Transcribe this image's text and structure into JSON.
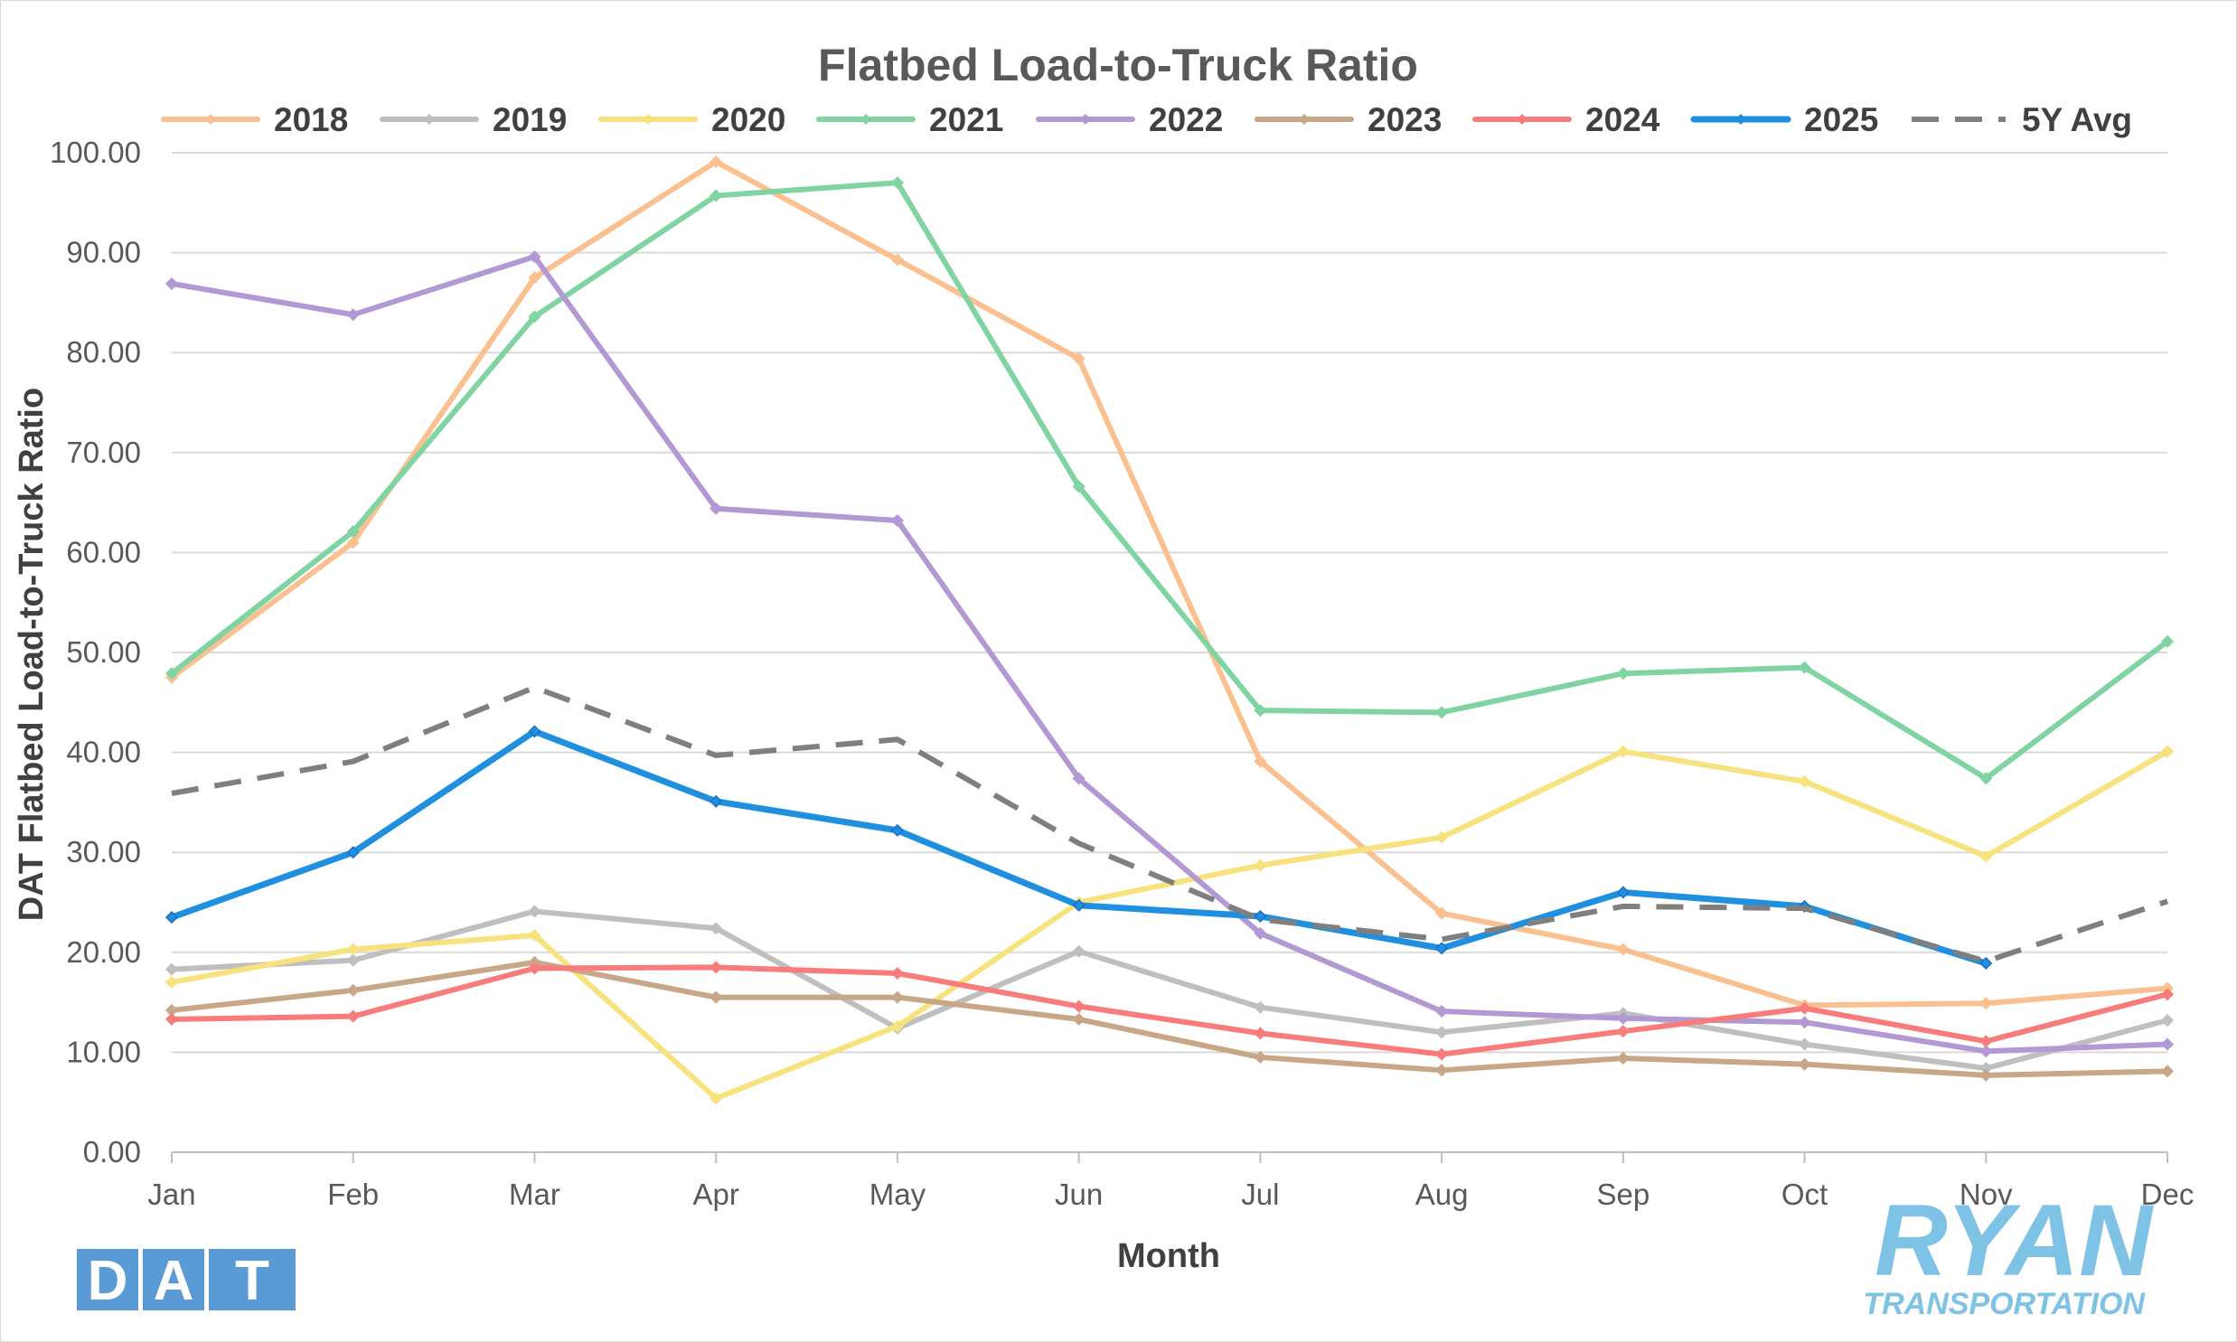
{
  "chart_data": {
    "type": "line",
    "title": "Flatbed Load-to-Truck Ratio",
    "xlabel": "Month",
    "ylabel": "DAT Flatbed Load-to-Truck Ratio",
    "ylim": [
      0,
      100
    ],
    "y_ticks": [
      "0.00",
      "10.00",
      "20.00",
      "30.00",
      "40.00",
      "50.00",
      "60.00",
      "70.00",
      "80.00",
      "90.00",
      "100.00"
    ],
    "grid": "horizontal",
    "legend_position": "top",
    "categories": [
      "Jan",
      "Feb",
      "Mar",
      "Apr",
      "May",
      "Jun",
      "Jul",
      "Aug",
      "Sep",
      "Oct",
      "Nov",
      "Dec"
    ],
    "series": [
      {
        "name": "2018",
        "color": "#fac090",
        "style": "line-marker",
        "values": [
          47.5,
          61.0,
          87.5,
          99.1,
          89.3,
          79.4,
          39.1,
          23.9,
          20.3,
          14.7,
          14.9,
          16.4
        ]
      },
      {
        "name": "2019",
        "color": "#bfbfbf",
        "style": "line-marker",
        "values": [
          18.3,
          19.2,
          24.1,
          22.4,
          12.4,
          20.1,
          14.5,
          12.0,
          13.9,
          10.8,
          8.4,
          13.2
        ]
      },
      {
        "name": "2020",
        "color": "#f7e27d",
        "style": "line-marker",
        "values": [
          17.0,
          20.3,
          21.7,
          5.4,
          12.6,
          25.0,
          28.7,
          31.5,
          40.1,
          37.1,
          29.6,
          40.1
        ]
      },
      {
        "name": "2021",
        "color": "#7fd4a2",
        "style": "line-marker",
        "values": [
          47.9,
          62.1,
          83.6,
          95.7,
          97.0,
          66.6,
          44.2,
          44.0,
          47.9,
          48.5,
          37.4,
          51.1
        ]
      },
      {
        "name": "2022",
        "color": "#b399d4",
        "style": "line-marker",
        "values": [
          86.9,
          83.8,
          89.6,
          64.4,
          63.2,
          37.4,
          21.9,
          14.1,
          13.4,
          13.0,
          10.1,
          10.8
        ]
      },
      {
        "name": "2023",
        "color": "#c8a788",
        "style": "line-marker",
        "values": [
          14.2,
          16.2,
          19.0,
          15.5,
          15.5,
          13.3,
          9.5,
          8.2,
          9.4,
          8.8,
          7.7,
          8.1
        ]
      },
      {
        "name": "2024",
        "color": "#f87c7c",
        "style": "line-marker",
        "values": [
          13.3,
          13.6,
          18.4,
          18.5,
          17.9,
          14.6,
          11.9,
          9.8,
          12.1,
          14.4,
          11.1,
          15.8
        ]
      },
      {
        "name": "2025",
        "color": "#1f8fe0",
        "style": "line-marker-bold",
        "values": [
          23.5,
          30.0,
          42.1,
          35.1,
          32.2,
          24.7,
          23.6,
          20.4,
          26.0,
          24.6,
          18.9,
          null
        ]
      },
      {
        "name": "5Y Avg",
        "color": "#7f7f7f",
        "style": "dashed",
        "values": [
          35.9,
          39.1,
          46.5,
          39.7,
          41.3,
          30.9,
          23.3,
          21.3,
          24.6,
          24.4,
          19.1,
          25.1
        ]
      }
    ]
  },
  "logos": {
    "dat_letters": [
      "D",
      "A",
      "T"
    ],
    "dat_color": "#5b9bd5",
    "ryan_main": "RYAN",
    "ryan_sub": "TRANSPORTATION",
    "ryan_color": "#7ec3e6"
  }
}
